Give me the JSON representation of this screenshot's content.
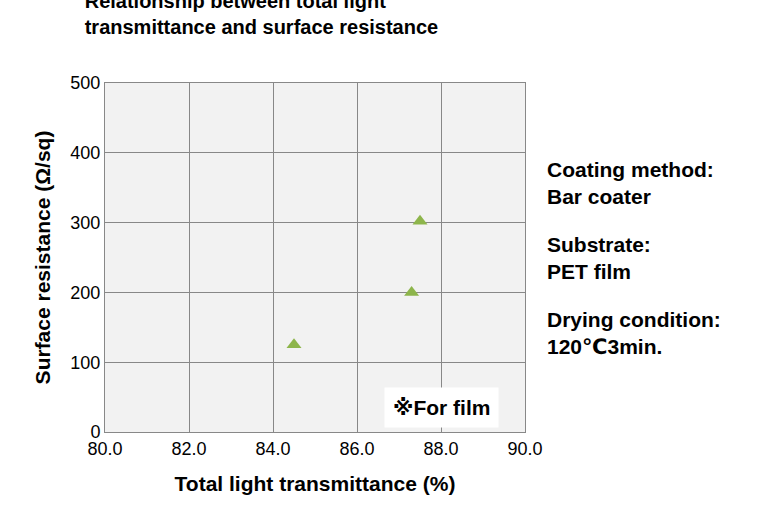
{
  "chart_data": {
    "type": "scatter",
    "title": "Relationship between total light\ntransmittance and surface resistance",
    "x_label": "Total light transmittance (%)",
    "y_label": "Surface resistance (Ω/sq)",
    "x": [
      84.5,
      87.3,
      87.5
    ],
    "values": [
      125,
      200,
      302
    ],
    "color": "#8db54b",
    "marker": "triangle-up",
    "xlim": [
      80,
      90
    ],
    "xticks": [
      {
        "value": 80,
        "label": "80.0"
      },
      {
        "value": 82,
        "label": "82.0"
      },
      {
        "value": 84,
        "label": "84.0"
      },
      {
        "value": 86,
        "label": "86.0"
      },
      {
        "value": 88,
        "label": "88.0"
      },
      {
        "value": 90,
        "label": "90.0"
      }
    ],
    "ylim": [
      0,
      500
    ],
    "yticks": [
      0,
      100,
      200,
      300,
      400,
      500
    ],
    "grid": true,
    "annotations": [
      "Coating method:\nBar coater",
      "Substrate:\nPET film",
      "Drying condition:\n120℃3min.",
      "※For film"
    ]
  }
}
